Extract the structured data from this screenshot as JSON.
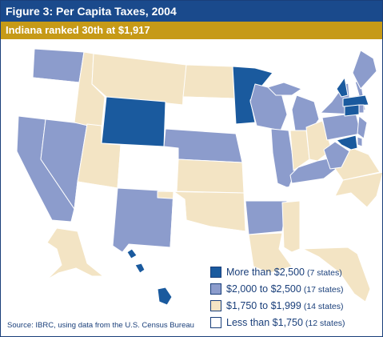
{
  "title": "Figure 3: Per Capita Taxes, 2004",
  "subtitle": "Indiana ranked 30th at $1,917",
  "source": "Source: IBRC, using data from the U.S. Census Bureau",
  "legend": [
    {
      "category": "high",
      "label": "More than $2,500",
      "count": "(7 states)"
    },
    {
      "category": "upper",
      "label": "$2,000 to $2,500",
      "count": "(17 states)"
    },
    {
      "category": "middle",
      "label": "$1,750 to $1,999",
      "count": "(14 states)"
    },
    {
      "category": "low",
      "label": "Less than $1,750",
      "count": "(12 states)"
    }
  ],
  "colors": {
    "high": "#1a5a9e",
    "upper": "#8c9ccc",
    "middle": "#f3e4c4",
    "low": "#ffffff",
    "outline": "#1a3f7a"
  },
  "state_categories": {
    "WA": "upper",
    "OR": "low",
    "CA": "upper",
    "NV": "upper",
    "ID": "middle",
    "MT": "middle",
    "WY": "high",
    "UT": "middle",
    "AZ": "low",
    "NM": "upper",
    "CO": "low",
    "ND": "middle",
    "SD": "low",
    "NE": "upper",
    "KS": "middle",
    "OK": "middle",
    "TX": "low",
    "MN": "high",
    "IA": "low",
    "MO": "low",
    "AR": "upper",
    "LA": "middle",
    "WI": "upper",
    "IL": "upper",
    "MI": "upper",
    "IN": "middle",
    "OH": "middle",
    "KY": "upper",
    "TN": "low",
    "MS": "middle",
    "AL": "low",
    "GA": "low",
    "FL": "middle",
    "SC": "low",
    "NC": "middle",
    "VA": "middle",
    "WV": "upper",
    "PA": "upper",
    "NY": "upper",
    "ME": "upper",
    "VT": "high",
    "NH": "low",
    "MA": "high",
    "CT": "high",
    "RI": "upper",
    "NJ": "upper",
    "DE": "upper",
    "MD": "high",
    "AK": "middle",
    "HI": "high"
  }
}
